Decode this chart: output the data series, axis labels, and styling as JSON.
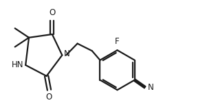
{
  "bg_color": "#ffffff",
  "line_color": "#1a1a1a",
  "line_width": 1.6,
  "font_size": 8.5,
  "xlim": [
    0,
    5.8
  ],
  "ylim": [
    0,
    3.2
  ]
}
